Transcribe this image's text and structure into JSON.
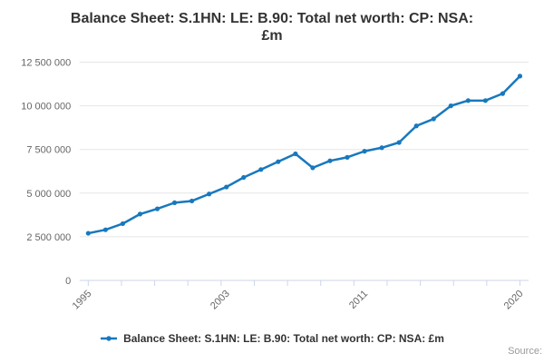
{
  "title_lines": [
    "Balance Sheet: S.1HN: LE: B.90: Total net worth: CP: NSA:",
    "£m"
  ],
  "legend": {
    "label": "Balance Sheet: S.1HN: LE: B.90: Total net worth: CP: NSA: £m"
  },
  "credits": {
    "text": "Source:"
  },
  "colors": {
    "line": "#1878be",
    "grid": "#e6e6e6",
    "axis": "#ccd6eb",
    "axis_label": "#666666",
    "title": "#333333",
    "credits": "#999999"
  },
  "chart_data": {
    "type": "line",
    "title": "Balance Sheet: S.1HN: LE: B.90: Total net worth: CP: NSA: £m",
    "xlabel": "",
    "ylabel": "",
    "x": [
      1995,
      1996,
      1997,
      1998,
      1999,
      2000,
      2001,
      2002,
      2003,
      2004,
      2005,
      2006,
      2007,
      2008,
      2009,
      2010,
      2011,
      2012,
      2013,
      2014,
      2015,
      2016,
      2017,
      2018,
      2019,
      2020
    ],
    "series": [
      {
        "name": "Balance Sheet: S.1HN: LE: B.90: Total net worth: CP: NSA: £m",
        "values": [
          2700000,
          2900000,
          3250000,
          3800000,
          4100000,
          4450000,
          4550000,
          4950000,
          5350000,
          5900000,
          6350000,
          6800000,
          7250000,
          6450000,
          6850000,
          7050000,
          7400000,
          7600000,
          7900000,
          8850000,
          9250000,
          10000000,
          10300000,
          10300000,
          10700000,
          11700000
        ]
      }
    ],
    "ylim": [
      0,
      12500000
    ],
    "yticks": [
      0,
      2500000,
      5000000,
      7500000,
      10000000,
      12500000
    ],
    "ytick_labels": [
      "0",
      "2 500 000",
      "5 000 000",
      "7 500 000",
      "10 000 000",
      "12 500 000"
    ],
    "xtick_labels": [
      "1995",
      "2003",
      "2011",
      "2020"
    ],
    "grid": true,
    "legend_position": "bottom",
    "marker": "circle"
  }
}
